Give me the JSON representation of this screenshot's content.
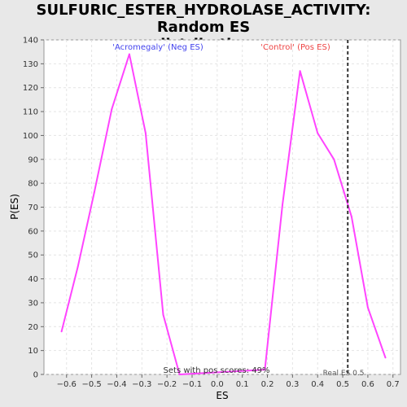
{
  "title_line1": "SULFURIC_ESTER_HYDROLASE_ACTIVITY: Random ES",
  "title_line2": "distribution",
  "chart_data": {
    "type": "line",
    "title": "SULFURIC_ESTER_HYDROLASE_ACTIVITY: Random ES distribution",
    "xlabel": "ES",
    "ylabel": "P(ES)",
    "xlim": [
      -0.69,
      0.73
    ],
    "ylim": [
      0,
      140
    ],
    "x_ticks": [
      "-0.6",
      "-0.5",
      "-0.4",
      "-0.3",
      "-0.2",
      "-0.1",
      "0.0",
      "0.1",
      "0.2",
      "0.3",
      "0.4",
      "0.5",
      "0.6",
      "0.7"
    ],
    "y_ticks": [
      "0",
      "10",
      "20",
      "30",
      "40",
      "50",
      "60",
      "70",
      "80",
      "90",
      "100",
      "110",
      "120",
      "130",
      "140"
    ],
    "grid": true,
    "series": [
      {
        "color": "#ff44ff",
        "x": [
          -0.62,
          -0.555,
          -0.49,
          -0.42,
          -0.35,
          -0.285,
          -0.215,
          -0.15,
          0.19,
          0.26,
          0.33,
          0.4,
          0.465,
          0.535,
          0.6,
          0.67
        ],
        "y": [
          18,
          45,
          76,
          111,
          134,
          101,
          25,
          0,
          2,
          71,
          127,
          101,
          90,
          66,
          28,
          7
        ]
      }
    ],
    "real_es": {
      "x": 0.52,
      "label": "Real ES 0.5"
    },
    "annotations": {
      "neg_label": "'Acromegaly' (Neg ES)",
      "pos_label": "'Control' (Pos ES)",
      "pos_scores": "Sets with pos scores: 49%"
    },
    "colors": {
      "neg_label": "#4444ee",
      "pos_label": "#ee4444",
      "line": "#ff44ff"
    }
  }
}
